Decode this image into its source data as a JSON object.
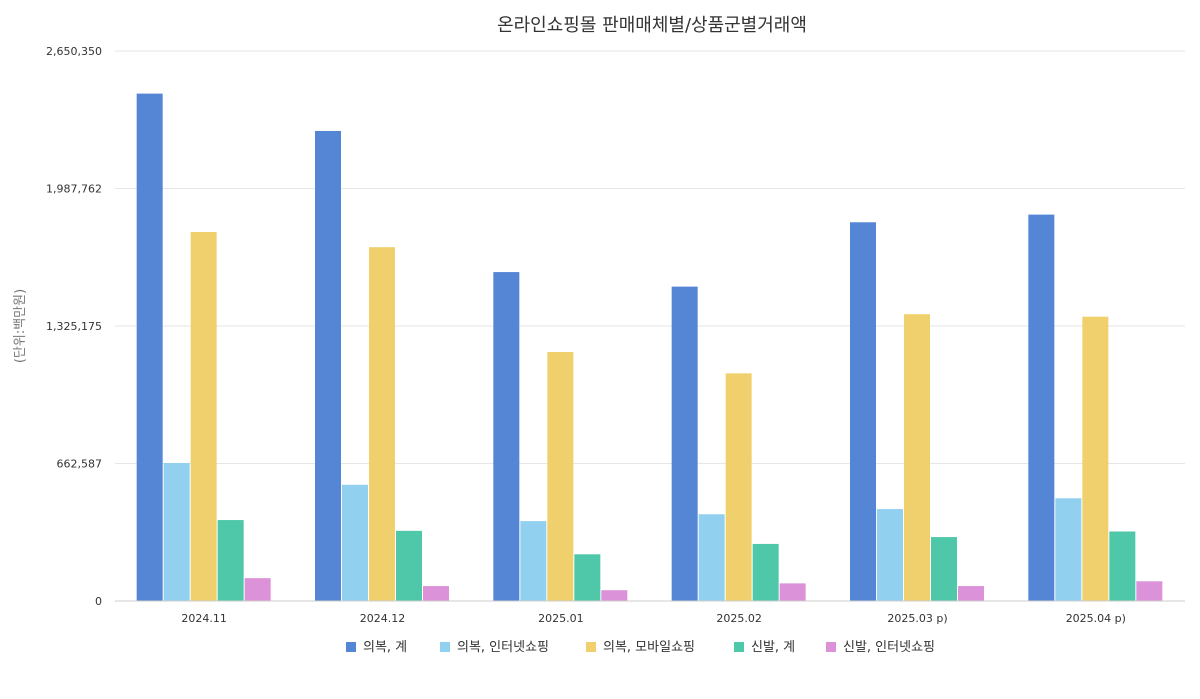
{
  "chart_data": {
    "type": "bar",
    "title": "온라인쇼핑몰 판매매체별/상품군별거래액",
    "ylabel": "(단위:백만원)",
    "xlabel": "",
    "categories": [
      "2024.11",
      "2024.12",
      "2025.01",
      "2025.02",
      "2025.03 p)",
      "2025.04 p)"
    ],
    "ylim": [
      0,
      2650350
    ],
    "yticks": [
      "0",
      "662,587",
      "1,325,175",
      "1,987,762",
      "2,650,350"
    ],
    "ytick_values": [
      0,
      662587,
      1325175,
      1987762,
      2650350
    ],
    "grid": true,
    "legend_position": "bottom",
    "series": [
      {
        "name": "의복, 계",
        "color": "#5585d5",
        "values": [
          2445000,
          2265000,
          1585000,
          1515000,
          1825000,
          1862000
        ]
      },
      {
        "name": "의복, 인터넷쇼핑",
        "color": "#92d0f0",
        "values": [
          665000,
          560000,
          385000,
          418000,
          443000,
          495000
        ]
      },
      {
        "name": "의복, 모바일쇼핑",
        "color": "#f0d06c",
        "values": [
          1778000,
          1705000,
          1200000,
          1097000,
          1382000,
          1370000
        ]
      },
      {
        "name": "신발, 계",
        "color": "#4fc7a9",
        "values": [
          390000,
          338000,
          225000,
          275000,
          308000,
          335000
        ]
      },
      {
        "name": "신발, 인터넷쇼핑",
        "color": "#dc92d8",
        "values": [
          110000,
          72000,
          52000,
          85000,
          72000,
          95000
        ]
      }
    ]
  }
}
